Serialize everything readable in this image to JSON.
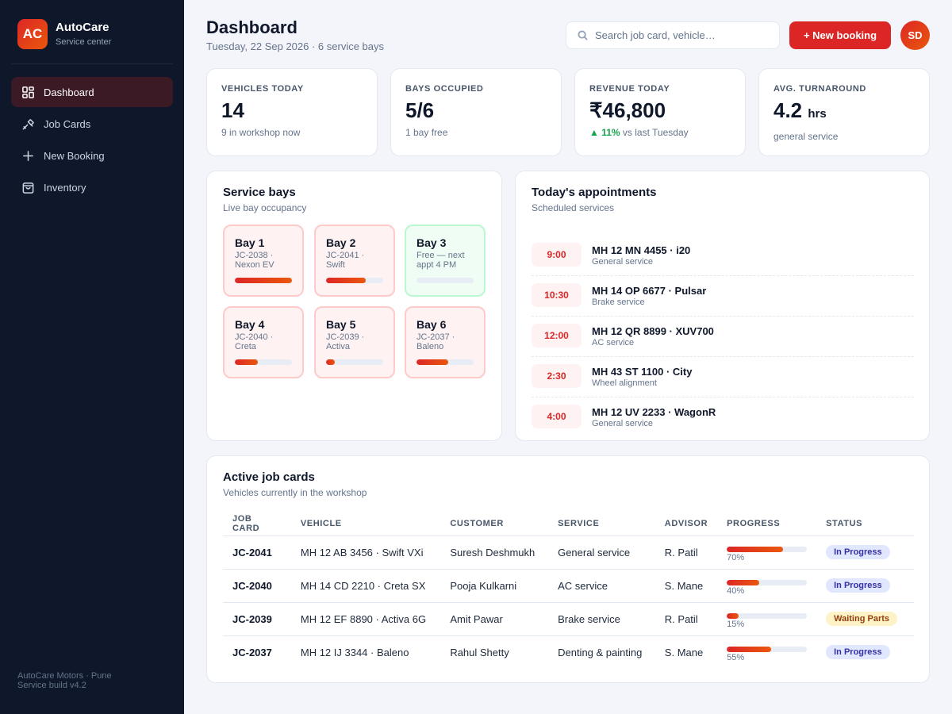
{
  "brand": {
    "logo": "AC",
    "name": "AutoCare",
    "subtitle": "Service center"
  },
  "nav": [
    {
      "label": "Dashboard",
      "icon": "grid-icon",
      "active": true
    },
    {
      "label": "Job Cards",
      "icon": "wrench-icon",
      "active": false
    },
    {
      "label": "New Booking",
      "icon": "plus-icon",
      "active": false
    },
    {
      "label": "Inventory",
      "icon": "bag-icon",
      "active": false
    }
  ],
  "footer": {
    "line1": "AutoCare Motors · Pune",
    "line2": "Service build v4.2"
  },
  "header": {
    "title": "Dashboard",
    "subtitle": "Tuesday, 22 Sep 2026 · 6 service bays",
    "search_placeholder": "Search job card, vehicle…",
    "new_booking_label": "+ New booking",
    "avatar_initials": "SD"
  },
  "stats": [
    {
      "label": "VEHICLES TODAY",
      "value": "14",
      "unit": "",
      "note": "9 in workshop now",
      "trend": ""
    },
    {
      "label": "BAYS OCCUPIED",
      "value": "5/6",
      "unit": "",
      "note": "1 bay free",
      "trend": ""
    },
    {
      "label": "REVENUE TODAY",
      "value": "₹46,800",
      "unit": "",
      "note": "vs last Tuesday",
      "trend": "▲ 11%"
    },
    {
      "label": "AVG. TURNAROUND",
      "value": "4.2",
      "unit": "hrs",
      "note": "general service",
      "trend": ""
    }
  ],
  "bays_panel": {
    "title": "Service bays",
    "subtitle": "Live bay occupancy",
    "bays": [
      {
        "name": "Bay 1",
        "info": "JC-2038 · Nexon EV",
        "progress": 1.0,
        "free": false
      },
      {
        "name": "Bay 2",
        "info": "JC-2041 · Swift",
        "progress": 0.7,
        "free": false
      },
      {
        "name": "Bay 3",
        "info": "Free — next appt 4 PM",
        "progress": 0,
        "free": true
      },
      {
        "name": "Bay 4",
        "info": "JC-2040 · Creta",
        "progress": 0.4,
        "free": false
      },
      {
        "name": "Bay 5",
        "info": "JC-2039 · Activa",
        "progress": 0.15,
        "free": false
      },
      {
        "name": "Bay 6",
        "info": "JC-2037 · Baleno",
        "progress": 0.55,
        "free": false
      }
    ]
  },
  "appointments_panel": {
    "title": "Today's appointments",
    "subtitle": "Scheduled services",
    "items": [
      {
        "time": "9:00",
        "vehicle": "MH 12 MN 4455 · i20",
        "service": "General service"
      },
      {
        "time": "10:30",
        "vehicle": "MH 14 OP 6677 · Pulsar",
        "service": "Brake service"
      },
      {
        "time": "12:00",
        "vehicle": "MH 12 QR 8899 · XUV700",
        "service": "AC service"
      },
      {
        "time": "2:30",
        "vehicle": "MH 43 ST 1100 · City",
        "service": "Wheel alignment"
      },
      {
        "time": "4:00",
        "vehicle": "MH 12 UV 2233 · WagonR",
        "service": "General service"
      }
    ]
  },
  "jobs_panel": {
    "title": "Active job cards",
    "subtitle": "Vehicles currently in the workshop",
    "columns": [
      "JOB CARD",
      "VEHICLE",
      "CUSTOMER",
      "SERVICE",
      "ADVISOR",
      "PROGRESS",
      "STATUS"
    ],
    "rows": [
      {
        "job": "JC-2041",
        "vehicle": "MH 12 AB 3456 · Swift VXi",
        "customer": "Suresh Deshmukh",
        "service": "General service",
        "advisor": "R. Patil",
        "progress": 70,
        "progress_label": "70%",
        "status": "In Progress",
        "status_kind": "progress"
      },
      {
        "job": "JC-2040",
        "vehicle": "MH 14 CD 2210 · Creta SX",
        "customer": "Pooja Kulkarni",
        "service": "AC service",
        "advisor": "S. Mane",
        "progress": 40,
        "progress_label": "40%",
        "status": "In Progress",
        "status_kind": "progress"
      },
      {
        "job": "JC-2039",
        "vehicle": "MH 12 EF 8890 · Activa 6G",
        "customer": "Amit Pawar",
        "service": "Brake service",
        "advisor": "R. Patil",
        "progress": 15,
        "progress_label": "15%",
        "status": "Waiting Parts",
        "status_kind": "waiting"
      },
      {
        "job": "JC-2037",
        "vehicle": "MH 12 IJ 3344 · Baleno",
        "customer": "Rahul Shetty",
        "service": "Denting & painting",
        "advisor": "S. Mane",
        "progress": 55,
        "progress_label": "55%",
        "status": "In Progress",
        "status_kind": "progress"
      }
    ]
  },
  "colors": {
    "accent": "#dc2626",
    "accent2": "#ea580c",
    "sidebar": "#0f172a",
    "success": "#16a34a"
  }
}
